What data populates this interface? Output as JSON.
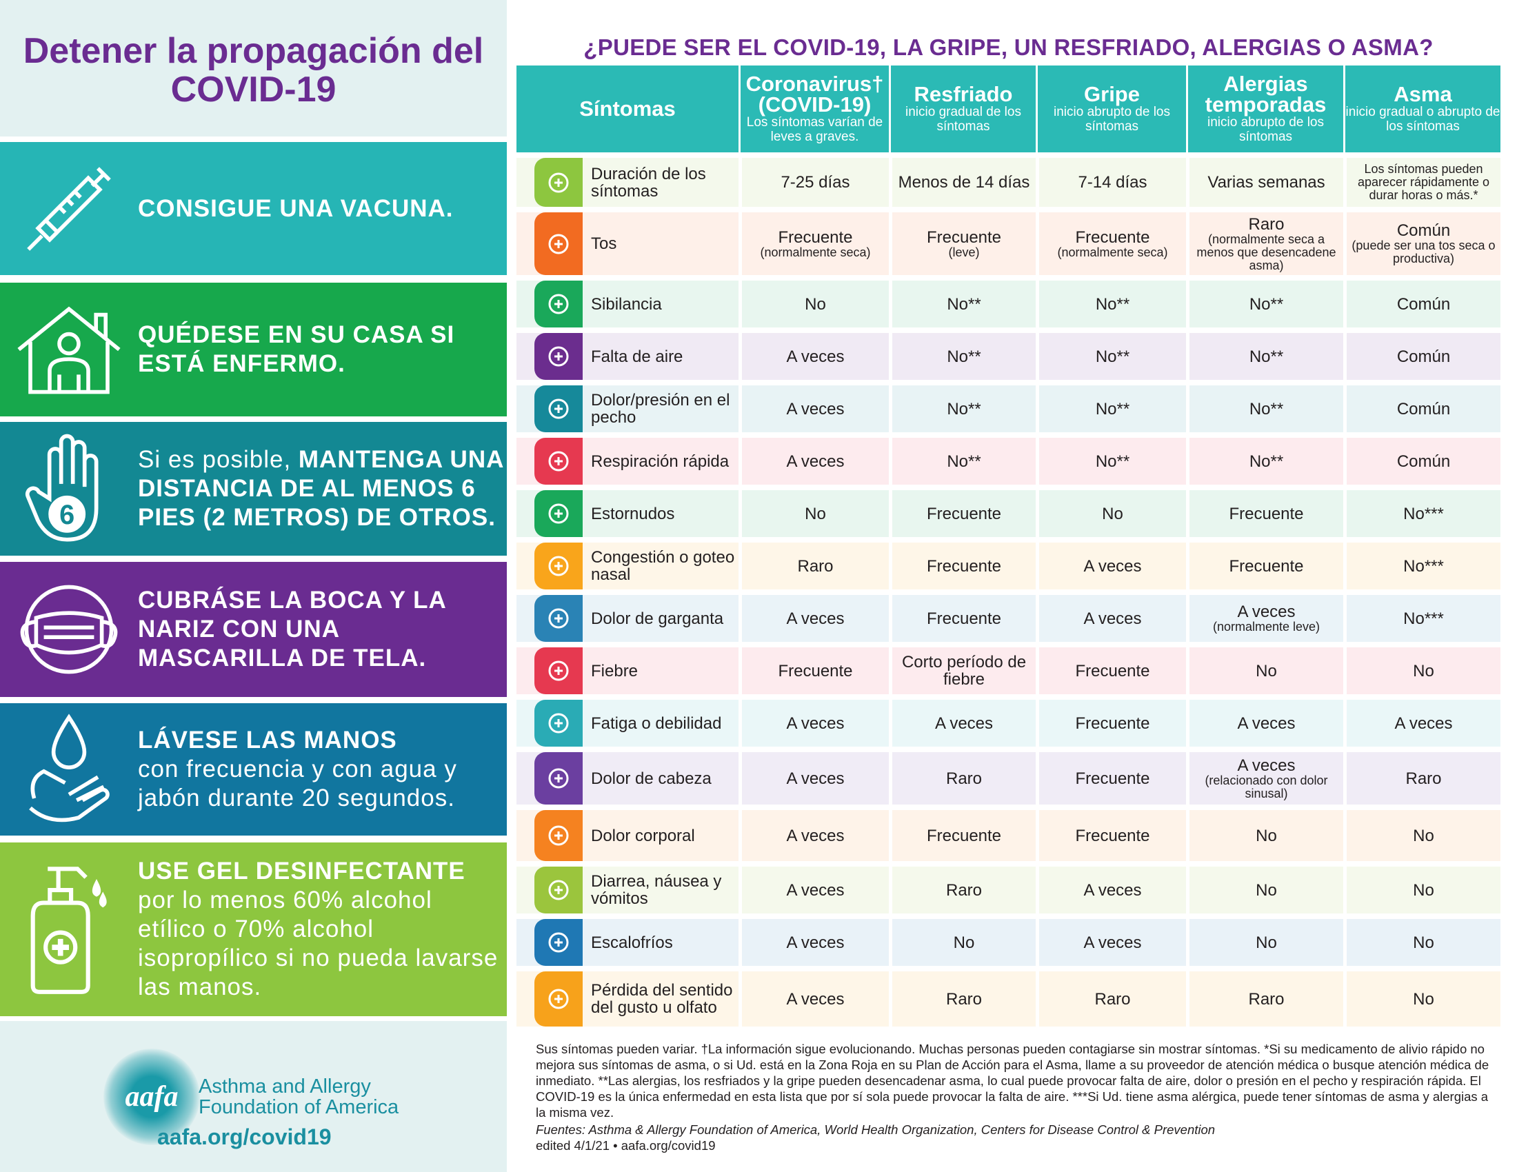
{
  "left": {
    "title": "Detener la propagación del COVID-19",
    "tips": [
      {
        "icon": "syringe-icon",
        "color": "#26b5b5",
        "bold": "CONSIGUE UNA VACUNA.",
        "normal_before": "",
        "normal_after": ""
      },
      {
        "icon": "house-person-icon",
        "color": "#17a84c",
        "bold": "QUÉDESE EN SU CASA SI ESTÁ ENFERMO.",
        "normal_before": "",
        "normal_after": ""
      },
      {
        "icon": "hand-six-icon",
        "color": "#138893",
        "bold": "MANTENGA UNA DISTANCIA DE AL MENOS 6 PIES (2 METROS) DE OTROS.",
        "normal_before": "Si es posible, ",
        "normal_after": ""
      },
      {
        "icon": "mask-icon",
        "color": "#6a2c91",
        "bold": "CUBRÁSE LA BOCA Y LA NARIZ CON UNA MASCARILLA DE TELA.",
        "normal_before": "",
        "normal_after": ""
      },
      {
        "icon": "hand-wash-icon",
        "color": "#11769f",
        "bold": "LÁVESE LAS MANOS",
        "normal_before": "",
        "normal_after": "con frecuencia y con agua y jabón durante 20 segundos."
      },
      {
        "icon": "sanitizer-icon",
        "color": "#8dc63f",
        "bold": "USE GEL DESINFECTANTE",
        "normal_before": "",
        "normal_after": "por lo menos 60% alcohol etílico o 70% alcohol isopropílico si no pueda lavarse las manos."
      }
    ],
    "logo": {
      "mark": "aafa",
      "name_line1": "Asthma and Allergy",
      "name_line2": "Foundation of America",
      "url": "aafa.org/covid19"
    }
  },
  "table": {
    "title": "¿PUEDE SER EL COVID-19, LA GRIPE, UN RESFRIADO, ALERGIAS O ASMA?",
    "header_color": "#2bbab5",
    "columns": [
      {
        "name": "Síntomas",
        "sub": ""
      },
      {
        "name": "Coronavirus† (COVID-19)",
        "sub": "Los síntomas varían de leves a graves."
      },
      {
        "name": "Resfriado",
        "sub": "inicio gradual de los síntomas"
      },
      {
        "name": "Gripe",
        "sub": "inicio abrupto de los síntomas"
      },
      {
        "name": "Alergias temporadas",
        "sub": "inicio abrupto de los síntomas"
      },
      {
        "name": "Asma",
        "sub": "inicio gradual o abrupto de los síntomas"
      }
    ],
    "rows": [
      {
        "symptom": "Duración de los síntomas",
        "icon": "calendar-icon",
        "color": "#8dc63f",
        "cells": [
          {
            "main": "7-25 días",
            "sub": ""
          },
          {
            "main": "Menos de 14 días",
            "sub": ""
          },
          {
            "main": "7-14 días",
            "sub": ""
          },
          {
            "main": "Varias semanas",
            "sub": ""
          },
          {
            "main": "",
            "sub": "Los síntomas pueden aparecer rápidamente o durar horas o más.*"
          }
        ]
      },
      {
        "symptom": "Tos",
        "icon": "cough-icon",
        "color": "#f26b21",
        "cells": [
          {
            "main": "Frecuente",
            "sub": "(normalmente seca)"
          },
          {
            "main": "Frecuente",
            "sub": "(leve)"
          },
          {
            "main": "Frecuente",
            "sub": "(normalmente seca)"
          },
          {
            "main": "Raro",
            "sub": "(normalmente seca a menos que desencadene asma)"
          },
          {
            "main": "Común",
            "sub": "(puede ser una tos seca o productiva)"
          }
        ]
      },
      {
        "symptom": "Sibilancia",
        "icon": "wheeze-icon",
        "color": "#1aa85a",
        "cells": [
          {
            "main": "No",
            "sub": ""
          },
          {
            "main": "No**",
            "sub": ""
          },
          {
            "main": "No**",
            "sub": ""
          },
          {
            "main": "No**",
            "sub": ""
          },
          {
            "main": "Común",
            "sub": ""
          }
        ]
      },
      {
        "symptom": "Falta de aire",
        "icon": "lungs-icon",
        "color": "#6b2d8e",
        "cells": [
          {
            "main": "A veces",
            "sub": ""
          },
          {
            "main": "No**",
            "sub": ""
          },
          {
            "main": "No**",
            "sub": ""
          },
          {
            "main": "No**",
            "sub": ""
          },
          {
            "main": "Común",
            "sub": ""
          }
        ]
      },
      {
        "symptom": "Dolor/presión en el pecho",
        "icon": "chest-pain-icon",
        "color": "#16899a",
        "cells": [
          {
            "main": "A veces",
            "sub": ""
          },
          {
            "main": "No**",
            "sub": ""
          },
          {
            "main": "No**",
            "sub": ""
          },
          {
            "main": "No**",
            "sub": ""
          },
          {
            "main": "Común",
            "sub": ""
          }
        ]
      },
      {
        "symptom": "Respiración rápida",
        "icon": "rapid-breath-icon",
        "color": "#e63950",
        "cells": [
          {
            "main": "A veces",
            "sub": ""
          },
          {
            "main": "No**",
            "sub": ""
          },
          {
            "main": "No**",
            "sub": ""
          },
          {
            "main": "No**",
            "sub": ""
          },
          {
            "main": "Común",
            "sub": ""
          }
        ]
      },
      {
        "symptom": "Estornudos",
        "icon": "nose-icon",
        "color": "#1aa85a",
        "cells": [
          {
            "main": "No",
            "sub": ""
          },
          {
            "main": "Frecuente",
            "sub": ""
          },
          {
            "main": "No",
            "sub": ""
          },
          {
            "main": "Frecuente",
            "sub": ""
          },
          {
            "main": "No***",
            "sub": ""
          }
        ]
      },
      {
        "symptom": "Congestión o goteo nasal",
        "icon": "drop-icon",
        "color": "#f9a51b",
        "cells": [
          {
            "main": "Raro",
            "sub": ""
          },
          {
            "main": "Frecuente",
            "sub": ""
          },
          {
            "main": "A veces",
            "sub": ""
          },
          {
            "main": "Frecuente",
            "sub": ""
          },
          {
            "main": "No***",
            "sub": ""
          }
        ]
      },
      {
        "symptom": "Dolor de garganta",
        "icon": "throat-icon",
        "color": "#2a83b5",
        "cells": [
          {
            "main": "A veces",
            "sub": ""
          },
          {
            "main": "Frecuente",
            "sub": ""
          },
          {
            "main": "A veces",
            "sub": ""
          },
          {
            "main": "A veces",
            "sub": "(normalmente leve)"
          },
          {
            "main": "No***",
            "sub": ""
          }
        ]
      },
      {
        "symptom": "Fiebre",
        "icon": "thermometer-icon",
        "color": "#e63950",
        "cells": [
          {
            "main": "Frecuente",
            "sub": ""
          },
          {
            "main": "Corto período de fiebre",
            "sub": ""
          },
          {
            "main": "Frecuente",
            "sub": ""
          },
          {
            "main": "No",
            "sub": ""
          },
          {
            "main": "No",
            "sub": ""
          }
        ]
      },
      {
        "symptom": "Fatiga o debilidad",
        "icon": "sleep-bubble-icon",
        "color": "#2aabb5",
        "cells": [
          {
            "main": "A veces",
            "sub": ""
          },
          {
            "main": "A veces",
            "sub": ""
          },
          {
            "main": "Frecuente",
            "sub": ""
          },
          {
            "main": "A veces",
            "sub": ""
          },
          {
            "main": "A veces",
            "sub": ""
          }
        ]
      },
      {
        "symptom": "Dolor de cabeza",
        "icon": "headache-icon",
        "color": "#6b3fa0",
        "cells": [
          {
            "main": "A veces",
            "sub": ""
          },
          {
            "main": "Raro",
            "sub": ""
          },
          {
            "main": "Frecuente",
            "sub": ""
          },
          {
            "main": "A veces",
            "sub": "(relacionado con dolor sinusal)"
          },
          {
            "main": "Raro",
            "sub": ""
          }
        ]
      },
      {
        "symptom": "Dolor corporal",
        "icon": "body-ache-icon",
        "color": "#f58220",
        "cells": [
          {
            "main": "A veces",
            "sub": ""
          },
          {
            "main": "Frecuente",
            "sub": ""
          },
          {
            "main": "Frecuente",
            "sub": ""
          },
          {
            "main": "No",
            "sub": ""
          },
          {
            "main": "No",
            "sub": ""
          }
        ]
      },
      {
        "symptom": "Diarrea, náusea y vómitos",
        "icon": "stomach-icon",
        "color": "#9bc53d",
        "cells": [
          {
            "main": "A veces",
            "sub": ""
          },
          {
            "main": "Raro",
            "sub": ""
          },
          {
            "main": "A veces",
            "sub": ""
          },
          {
            "main": "No",
            "sub": ""
          },
          {
            "main": "No",
            "sub": ""
          }
        ]
      },
      {
        "symptom": "Escalofríos",
        "icon": "chills-icon",
        "color": "#1f78b4",
        "cells": [
          {
            "main": "A veces",
            "sub": ""
          },
          {
            "main": "No",
            "sub": ""
          },
          {
            "main": "A veces",
            "sub": ""
          },
          {
            "main": "No",
            "sub": ""
          },
          {
            "main": "No",
            "sub": ""
          }
        ]
      },
      {
        "symptom": "Pérdida del sentido del gusto u olfato",
        "icon": "tongue-icon",
        "color": "#f7a21b",
        "cells": [
          {
            "main": "A veces",
            "sub": ""
          },
          {
            "main": "Raro",
            "sub": ""
          },
          {
            "main": "Raro",
            "sub": ""
          },
          {
            "main": "Raro",
            "sub": ""
          },
          {
            "main": "No",
            "sub": ""
          }
        ]
      }
    ]
  },
  "footnote": {
    "text": "Sus síntomas pueden variar. †La información sigue evolucionando. Muchas personas pueden contagiarse sin mostrar síntomas. *Si su medicamento de alivio rápido no mejora sus síntomas de asma, o si Ud. está en la Zona Roja en su Plan de Acción para el Asma, llame a su proveedor de atención médica o busque atención médica de inmediato. **Las alergias, los resfriados y la gripe pueden desencadenar asma, lo cual puede provocar falta de aire, dolor o presión en el pecho y respiración rápida. El COVID-19 es la única enfermedad en esta lista que por sí sola puede provocar la falta de aire. ***Si Ud. tiene asma alérgica, puede tener síntomas de asma y alergias a la misma vez.",
    "sources": "Fuentes: Asthma & Allergy Foundation of America, World Health Organization, Centers for Disease Control & Prevention",
    "edited": "edited 4/1/21 • aafa.org/covid19"
  }
}
